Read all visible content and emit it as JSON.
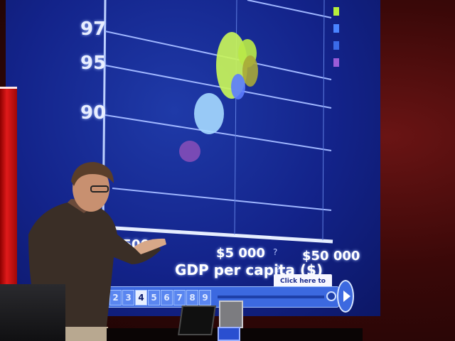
{
  "chart": {
    "y_ticks": [
      "97",
      "95",
      "90"
    ],
    "x_ticks": [
      "$500",
      "$5 000",
      "$50 000"
    ],
    "xlabel": "GDP per capita ($)",
    "question_marks": [
      "?",
      "?"
    ]
  },
  "controls": {
    "continue_label": "Click here to continue",
    "years": [
      "2",
      "3",
      "4",
      "5",
      "6",
      "7",
      "8",
      "9"
    ],
    "active_year": "4"
  },
  "colors": {
    "screen_bg": "#13238a",
    "bubble_green": "#c8f45a",
    "bubble_olive": "#a8a838",
    "bubble_cyan": "#a6d9ff",
    "bubble_blue": "#5c7cff",
    "bubble_purple": "#8a4fb8",
    "legend_green": "#b6ef3c",
    "legend_blue": "#4a84ff",
    "legend_purple": "#9a5cd8"
  }
}
